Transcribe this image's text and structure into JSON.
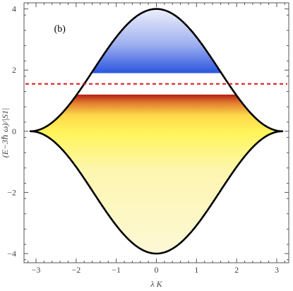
{
  "chart_data": {
    "type": "area",
    "panel_label": "(b)",
    "xlabel": "λ K",
    "ylabel": "(E−3ℏ ω)/|S1|",
    "xlim": [
      -3.3,
      3.3
    ],
    "ylim": [
      -4.3,
      4.2
    ],
    "x_ticks": [
      -3,
      -2,
      -1,
      0,
      1,
      2,
      3
    ],
    "x_tick_labels": [
      "−3",
      "−2",
      "−1",
      "0",
      "1",
      "2",
      "3"
    ],
    "y_ticks": [
      -4,
      -2,
      0,
      2,
      4
    ],
    "y_tick_labels": [
      "−4",
      "−2",
      "0",
      "2",
      "4"
    ],
    "band": {
      "description": "closed region bounded by E = ±2(1 + cos K)",
      "upper_max": 4,
      "lower_min": -4,
      "x_extent": [
        -3.14159,
        3.14159
      ],
      "outline_color": "#000000"
    },
    "upper_fill": {
      "y_range": [
        1.9,
        4.0
      ],
      "color_top": "#eef0fb",
      "color_bottom": "#2a55e0"
    },
    "gap": {
      "y_range": [
        1.2,
        1.9
      ],
      "color": "#ffffff"
    },
    "lower_fill": {
      "y_range": [
        -4.0,
        1.2
      ],
      "color_top": "#b51f14",
      "color_mid": "#fff55a",
      "color_bottom": "#fdf8d6"
    },
    "reference_line": {
      "y": 1.55,
      "style": "dashed",
      "color": "#e0141e"
    }
  }
}
